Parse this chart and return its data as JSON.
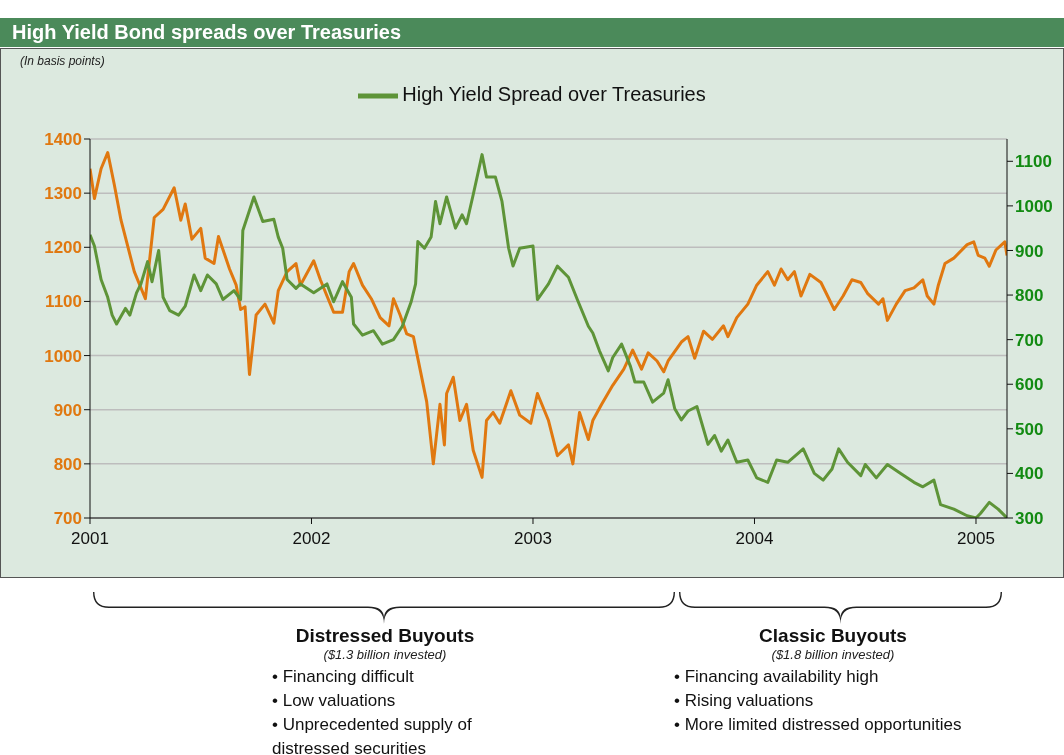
{
  "chart_data": {
    "type": "line",
    "title": "High Yield Bond spreads over Treasuries",
    "annotations": [
      "(In basis points)",
      "Distressed Buyouts",
      "($1.3 billion invested)",
      "• Financing difficult",
      "• Low valuations",
      "• Unprecedented supply of distressed securities",
      "Classic Buyouts",
      "($1.8 billion invested)",
      "• Financing availability high",
      "• Rising valuations",
      "• More limited distressed opportunities"
    ],
    "xlim": [
      2001,
      2005.14
    ],
    "xticks": [
      2001,
      2002,
      2003,
      2004,
      2005
    ],
    "ylim": [
      700,
      1400
    ],
    "yticks": [
      700,
      800,
      900,
      1000,
      1100,
      1200,
      1300,
      1400
    ],
    "y2lim": [
      300,
      1150
    ],
    "y2ticks": [
      300,
      400,
      500,
      600,
      700,
      800,
      900,
      1000,
      1100
    ],
    "grid": "y",
    "legend": "top",
    "marker": "none",
    "line_style": "solid",
    "series": [
      {
        "color": "#e07810",
        "x": [
          2001.0,
          2001.02,
          2001.05,
          2001.08,
          2001.11,
          2001.14,
          2001.2,
          2001.25,
          2001.29,
          2001.33,
          2001.38,
          2001.41,
          2001.43,
          2001.46,
          2001.5,
          2001.52,
          2001.56,
          2001.58,
          2001.63,
          2001.66,
          2001.68,
          2001.7,
          2001.72,
          2001.75,
          2001.79,
          2001.83,
          2001.85,
          2001.89,
          2001.93,
          2001.95,
          2002.01,
          2002.04,
          2002.1,
          2002.14,
          2002.17,
          2002.19,
          2002.23,
          2002.27,
          2002.31,
          2002.35,
          2002.37,
          2002.4,
          2002.43,
          2002.46,
          2002.49,
          2002.52,
          2002.55,
          2002.58,
          2002.6,
          2002.61,
          2002.64,
          2002.67,
          2002.7,
          2002.73,
          2002.77,
          2002.79,
          2002.82,
          2002.85,
          2002.9,
          2002.94,
          2002.99,
          2003.02,
          2003.07,
          2003.11,
          2003.16,
          2003.18,
          2003.21,
          2003.25,
          2003.27,
          2003.31,
          2003.36,
          2003.41,
          2003.45,
          2003.49,
          2003.52,
          2003.56,
          2003.59,
          2003.61,
          2003.67,
          2003.7,
          2003.73,
          2003.77,
          2003.81,
          2003.86,
          2003.88,
          2003.92,
          2003.97,
          2004.01,
          2004.06,
          2004.09,
          2004.12,
          2004.15,
          2004.18,
          2004.21,
          2004.25,
          2004.3,
          2004.33,
          2004.36,
          2004.4,
          2004.44,
          2004.48,
          2004.51,
          2004.56,
          2004.58,
          2004.6,
          2004.64,
          2004.68,
          2004.72,
          2004.76,
          2004.78,
          2004.81,
          2004.83,
          2004.86,
          2004.9,
          2004.96,
          2004.99,
          2005.01,
          2005.04,
          2005.06,
          2005.09,
          2005.13,
          2005.14
        ],
        "values": [
          1345,
          1290,
          1345,
          1375,
          1315,
          1250,
          1155,
          1105,
          1255,
          1270,
          1310,
          1250,
          1280,
          1215,
          1235,
          1180,
          1170,
          1220,
          1160,
          1130,
          1085,
          1090,
          965,
          1075,
          1095,
          1060,
          1120,
          1155,
          1170,
          1130,
          1175,
          1140,
          1080,
          1080,
          1155,
          1170,
          1130,
          1105,
          1070,
          1055,
          1105,
          1075,
          1040,
          1035,
          975,
          915,
          800,
          910,
          835,
          930,
          960,
          880,
          910,
          825,
          775,
          880,
          895,
          875,
          935,
          890,
          875,
          930,
          880,
          815,
          835,
          800,
          895,
          845,
          880,
          910,
          945,
          975,
          1010,
          975,
          1005,
          990,
          970,
          990,
          1025,
          1035,
          995,
          1045,
          1030,
          1055,
          1035,
          1070,
          1095,
          1130,
          1155,
          1130,
          1160,
          1140,
          1155,
          1110,
          1150,
          1135,
          1110,
          1085,
          1110,
          1140,
          1135,
          1115,
          1095,
          1105,
          1065,
          1095,
          1120,
          1125,
          1140,
          1110,
          1095,
          1130,
          1170,
          1180,
          1205,
          1210,
          1185,
          1180,
          1165,
          1195,
          1210,
          1185
        ]
      },
      {
        "name": "High Yield Spread over Treasuries",
        "color": "#5e9438",
        "axis": "y2",
        "x": [
          2001.0,
          2001.02,
          2001.05,
          2001.08,
          2001.1,
          2001.12,
          2001.16,
          2001.18,
          2001.21,
          2001.23,
          2001.26,
          2001.28,
          2001.31,
          2001.33,
          2001.36,
          2001.4,
          2001.43,
          2001.47,
          2001.5,
          2001.53,
          2001.57,
          2001.6,
          2001.65,
          2001.68,
          2001.69,
          2001.74,
          2001.78,
          2001.83,
          2001.85,
          2001.87,
          2001.89,
          2001.93,
          2001.95,
          2002.01,
          2002.07,
          2002.1,
          2002.14,
          2002.18,
          2002.19,
          2002.23,
          2002.28,
          2002.32,
          2002.37,
          2002.41,
          2002.45,
          2002.47,
          2002.48,
          2002.51,
          2002.54,
          2002.56,
          2002.58,
          2002.61,
          2002.65,
          2002.68,
          2002.7,
          2002.73,
          2002.77,
          2002.79,
          2002.83,
          2002.86,
          2002.89,
          2002.91,
          2002.94,
          2003.0,
          2003.02,
          2003.07,
          2003.11,
          2003.16,
          2003.2,
          2003.25,
          2003.27,
          2003.3,
          2003.34,
          2003.36,
          2003.4,
          2003.44,
          2003.46,
          2003.5,
          2003.54,
          2003.59,
          2003.61,
          2003.64,
          2003.67,
          2003.7,
          2003.74,
          2003.79,
          2003.82,
          2003.85,
          2003.88,
          2003.92,
          2003.97,
          2004.01,
          2004.06,
          2004.1,
          2004.15,
          2004.22,
          2004.27,
          2004.31,
          2004.35,
          2004.38,
          2004.42,
          2004.48,
          2004.5,
          2004.55,
          2004.6,
          2004.66,
          2004.72,
          2004.76,
          2004.81,
          2004.84,
          2004.9,
          2004.96,
          2005.0,
          2005.02,
          2005.06,
          2005.1,
          2005.14
        ],
        "values": [
          935,
          910,
          835,
          795,
          755,
          735,
          770,
          755,
          805,
          825,
          875,
          830,
          900,
          795,
          765,
          755,
          775,
          845,
          810,
          845,
          825,
          790,
          810,
          790,
          945,
          1020,
          965,
          970,
          930,
          905,
          835,
          815,
          825,
          805,
          825,
          785,
          830,
          795,
          735,
          710,
          720,
          690,
          700,
          730,
          785,
          825,
          920,
          905,
          930,
          1010,
          960,
          1020,
          950,
          980,
          960,
          1025,
          1115,
          1065,
          1065,
          1010,
          905,
          865,
          905,
          910,
          790,
          825,
          865,
          840,
          790,
          730,
          715,
          675,
          630,
          660,
          690,
          640,
          605,
          605,
          560,
          580,
          610,
          545,
          520,
          540,
          550,
          465,
          485,
          450,
          475,
          425,
          430,
          390,
          380,
          430,
          425,
          455,
          400,
          385,
          410,
          455,
          425,
          395,
          420,
          390,
          420,
          400,
          380,
          370,
          385,
          330,
          320,
          305,
          300,
          310,
          335,
          320,
          300
        ]
      }
    ]
  }
}
